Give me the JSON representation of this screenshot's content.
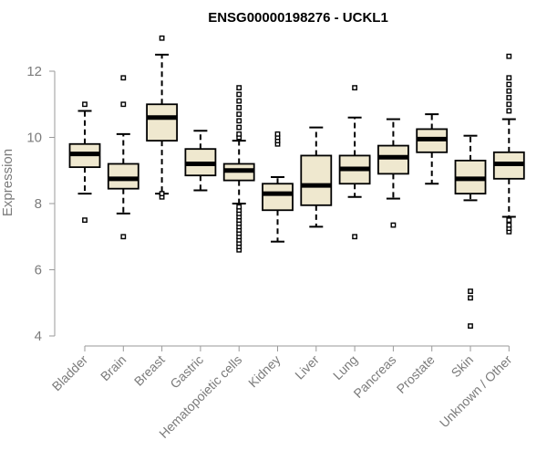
{
  "chart_data": {
    "type": "box",
    "title": "ENSG00000198276 - UCKL1",
    "ylabel": "Expression",
    "xlabel": "",
    "ylim": [
      4,
      13
    ],
    "yticks": [
      4,
      6,
      8,
      10,
      12
    ],
    "grid": false,
    "legend": "none",
    "colors": {
      "box_fill": "#efe8cf",
      "box_stroke": "#000000",
      "axis": "#9a9a9a",
      "tick_label": "#7b7b7b",
      "title": "#000000"
    },
    "categories": [
      "Bladder",
      "Brain",
      "Breast",
      "Gastric",
      "Hematopoietic cells",
      "Kidney",
      "Liver",
      "Lung",
      "Pancreas",
      "Prostate",
      "Skin",
      "Unknown / Other"
    ],
    "boxes": [
      {
        "category": "Bladder",
        "whisker_low": 8.3,
        "q1": 9.1,
        "median": 9.5,
        "q3": 9.8,
        "whisker_high": 10.8,
        "outliers": [
          7.5,
          11.0
        ]
      },
      {
        "category": "Brain",
        "whisker_low": 7.7,
        "q1": 8.45,
        "median": 8.75,
        "q3": 9.2,
        "whisker_high": 10.1,
        "outliers": [
          7.0,
          11.0,
          11.8
        ]
      },
      {
        "category": "Breast",
        "whisker_low": 8.3,
        "q1": 9.9,
        "median": 10.6,
        "q3": 11.0,
        "whisker_high": 12.5,
        "outliers": [
          8.2,
          8.3,
          13.0
        ]
      },
      {
        "category": "Gastric",
        "whisker_low": 8.4,
        "q1": 8.85,
        "median": 9.2,
        "q3": 9.65,
        "whisker_high": 10.2,
        "outliers": []
      },
      {
        "category": "Hematopoietic cells",
        "whisker_low": 8.0,
        "q1": 8.7,
        "median": 9.0,
        "q3": 9.2,
        "whisker_high": 9.9,
        "outliers": [
          6.6,
          6.7,
          6.8,
          6.9,
          7.0,
          7.1,
          7.2,
          7.3,
          7.4,
          7.5,
          7.6,
          7.7,
          7.8,
          7.9,
          10.0,
          10.1,
          10.3,
          10.5,
          10.7,
          10.9,
          11.1,
          11.3,
          11.5
        ]
      },
      {
        "category": "Kidney",
        "whisker_low": 6.85,
        "q1": 7.8,
        "median": 8.3,
        "q3": 8.6,
        "whisker_high": 8.8,
        "outliers": [
          9.8,
          9.9,
          10.0,
          10.1
        ]
      },
      {
        "category": "Liver",
        "whisker_low": 7.3,
        "q1": 7.95,
        "median": 8.55,
        "q3": 9.45,
        "whisker_high": 10.3,
        "outliers": []
      },
      {
        "category": "Lung",
        "whisker_low": 8.2,
        "q1": 8.6,
        "median": 9.05,
        "q3": 9.45,
        "whisker_high": 10.6,
        "outliers": [
          7.0,
          11.5
        ]
      },
      {
        "category": "Pancreas",
        "whisker_low": 8.15,
        "q1": 8.9,
        "median": 9.4,
        "q3": 9.75,
        "whisker_high": 10.55,
        "outliers": [
          7.35
        ]
      },
      {
        "category": "Prostate",
        "whisker_low": 8.6,
        "q1": 9.55,
        "median": 9.95,
        "q3": 10.25,
        "whisker_high": 10.7,
        "outliers": []
      },
      {
        "category": "Skin",
        "whisker_low": 8.1,
        "q1": 8.3,
        "median": 8.75,
        "q3": 9.3,
        "whisker_high": 10.05,
        "outliers": [
          4.3,
          5.15,
          5.35
        ]
      },
      {
        "category": "Unknown / Other",
        "whisker_low": 7.6,
        "q1": 8.75,
        "median": 9.2,
        "q3": 9.55,
        "whisker_high": 10.55,
        "outliers": [
          7.15,
          7.25,
          7.35,
          7.5,
          10.8,
          11.0,
          11.2,
          11.4,
          11.6,
          11.8,
          12.45
        ]
      }
    ]
  }
}
